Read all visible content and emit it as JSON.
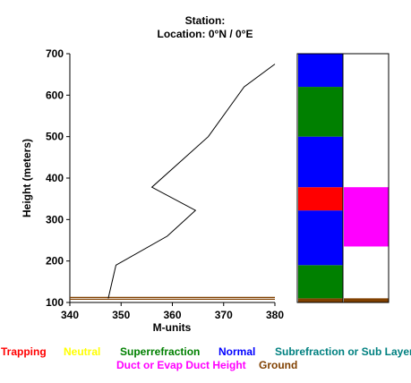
{
  "header": {
    "station_line": "Station:",
    "location_line": "Location:   0°N /   0°E"
  },
  "colors": {
    "trapping": "#ff0000",
    "neutral": "#ffff00",
    "superrefraction": "#008000",
    "normal": "#0000ff",
    "subrefraction": "#008080",
    "duct": "#ff00ff",
    "ground": "#804000"
  },
  "chart_data": {
    "type": "line",
    "xlabel": "M-units",
    "ylabel": "Height (meters)",
    "xlim": [
      340,
      380
    ],
    "ylim": [
      100,
      700
    ],
    "xticks": [
      340,
      350,
      360,
      370,
      380
    ],
    "yticks": [
      100,
      200,
      300,
      400,
      500,
      600,
      700
    ],
    "grid": false,
    "series": [
      {
        "x": [
          347.5,
          349,
          359,
          364.5,
          356,
          367,
          374,
          380
        ],
        "y": [
          110,
          190,
          260,
          322,
          378,
          500,
          620,
          675
        ]
      }
    ],
    "ground_height": 110,
    "refractivity_layers": [
      {
        "type": "ground",
        "from": 100,
        "to": 110
      },
      {
        "type": "superrefraction",
        "from": 110,
        "to": 190
      },
      {
        "type": "normal",
        "from": 190,
        "to": 322
      },
      {
        "type": "trapping",
        "from": 322,
        "to": 378
      },
      {
        "type": "normal",
        "from": 378,
        "to": 500
      },
      {
        "type": "superrefraction",
        "from": 500,
        "to": 620
      },
      {
        "type": "normal",
        "from": 620,
        "to": 700
      }
    ],
    "duct_layers": [
      {
        "type": "ground",
        "from": 100,
        "to": 110
      },
      {
        "type": "duct",
        "from": 235,
        "to": 378
      }
    ]
  },
  "legend": {
    "trapping": "Trapping",
    "neutral": "Neutral",
    "superrefraction": "Superrefraction",
    "normal": "Normal",
    "subrefraction": "Subrefraction or Sub Layer",
    "duct": "Duct or Evap Duct Height",
    "ground": "Ground"
  }
}
